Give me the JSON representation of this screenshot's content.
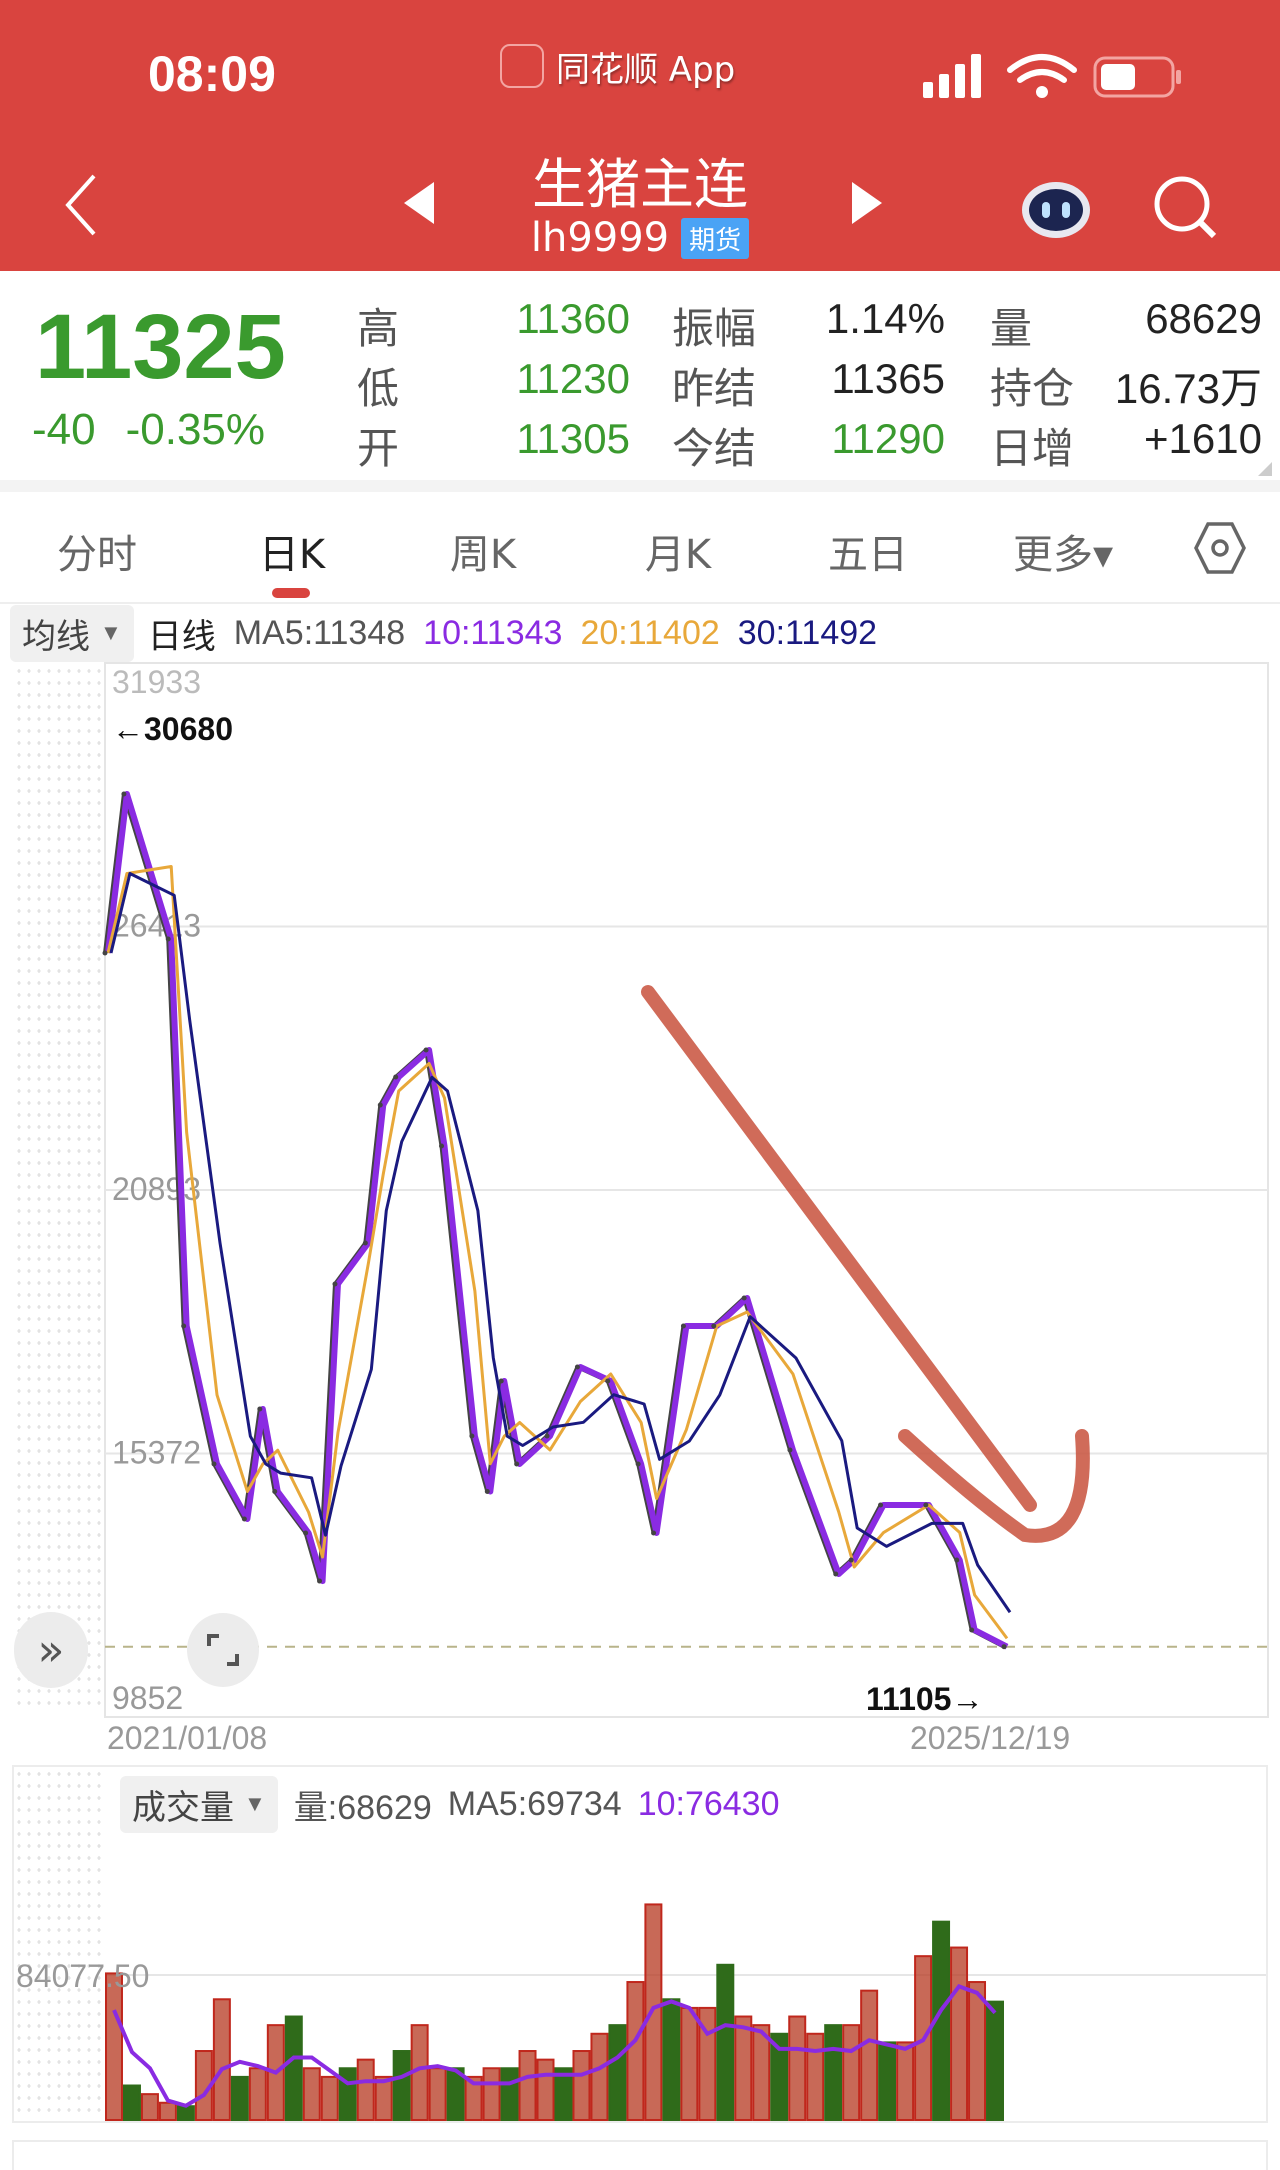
{
  "status": {
    "time": "08:09",
    "app_name": "同花顺 App"
  },
  "header": {
    "title": "生猪主连",
    "code": "lh9999",
    "badge": "期货",
    "icons": [
      "back-chevron-icon",
      "prev-triangle-icon",
      "next-triangle-icon",
      "robot-assistant-icon",
      "search-icon"
    ]
  },
  "quote": {
    "price": "11325",
    "change": "-40",
    "change_pct": "-0.35%",
    "rows": [
      [
        {
          "l": "高",
          "v": "11360",
          "c": "g"
        },
        {
          "l": "振幅",
          "v": "1.14%",
          "c": "k"
        },
        {
          "l": "量",
          "v": "68629",
          "c": "k"
        }
      ],
      [
        {
          "l": "低",
          "v": "11230",
          "c": "g"
        },
        {
          "l": "昨结",
          "v": "11365",
          "c": "k"
        },
        {
          "l": "持仓",
          "v": "16.73万",
          "c": "k"
        }
      ],
      [
        {
          "l": "开",
          "v": "11305",
          "c": "g"
        },
        {
          "l": "今结",
          "v": "11290",
          "c": "g"
        },
        {
          "l": "日增",
          "v": "+1610",
          "c": "k"
        }
      ]
    ]
  },
  "colors": {
    "header_red": "#d9443f",
    "down_green": "#3a9a2e",
    "ma5": "#555555",
    "ma10": "#8a2be2",
    "ma20": "#e8a83a",
    "ma30": "#1a1a80",
    "vol_up": "#c0271c",
    "vol_down": "#2f6b1a"
  },
  "tabs": [
    {
      "label": "分时"
    },
    {
      "label": "日K",
      "active": true
    },
    {
      "label": "周K"
    },
    {
      "label": "月K"
    },
    {
      "label": "五日"
    },
    {
      "label": "更多▾"
    }
  ],
  "legend": {
    "selector": "均线",
    "period": "日线",
    "ma5": "MA5:11348",
    "ma10": "10:11343",
    "ma20": "20:11402",
    "ma30": "30:11492"
  },
  "chart_data": [
    {
      "type": "line",
      "y_ticks": [
        "31933",
        "26413",
        "20893",
        "15372",
        "9852"
      ],
      "ylim": [
        9852,
        31933
      ],
      "x_labels": [
        "2021/01/08",
        "2025/12/19"
      ],
      "max_marker": "←30680",
      "min_marker": "11105→",
      "current_price_line": 11325,
      "series": [
        {
          "name": "日线",
          "points": [
            [
              "2021-01-08",
              25858
            ],
            [
              "2021-02",
              29188
            ],
            [
              "2021-05",
              26151
            ],
            [
              "2021-06",
              18044
            ],
            [
              "2021-08",
              15153
            ],
            [
              "2021-10",
              14000
            ],
            [
              "2021-11",
              16305
            ],
            [
              "2021-12",
              14576
            ],
            [
              "2022-02",
              13707
            ],
            [
              "2022-03",
              12700
            ],
            [
              "2022-04",
              18923
            ],
            [
              "2022-06",
              19782
            ],
            [
              "2022-07",
              22673
            ],
            [
              "2022-08",
              23260
            ],
            [
              "2022-10",
              23826
            ],
            [
              "2022-11",
              21814
            ],
            [
              "2023-01",
              15739
            ],
            [
              "2023-02",
              14576
            ],
            [
              "2023-03",
              16891
            ],
            [
              "2023-04",
              15153
            ],
            [
              "2023-06",
              15739
            ],
            [
              "2023-08",
              17184
            ],
            [
              "2023-10",
              16891
            ],
            [
              "2023-12",
              15153
            ],
            [
              "2024-01",
              13707
            ],
            [
              "2024-03",
              18044
            ],
            [
              "2024-05",
              18044
            ],
            [
              "2024-07",
              18630
            ],
            [
              "2024-10",
              15445
            ],
            [
              "2025-01",
              12848
            ],
            [
              "2025-02",
              13140
            ],
            [
              "2025-04",
              14293
            ],
            [
              "2025-07",
              14293
            ],
            [
              "2025-09",
              13140
            ],
            [
              "2025-10",
              11675
            ],
            [
              "2025-12-19",
              11325
            ]
          ]
        }
      ]
    },
    {
      "type": "bar",
      "title": "成交量",
      "legend": {
        "vol": "量:68629",
        "ma5": "MA5:69734",
        "ma10": "10:76430"
      },
      "y_tick": "84077.50",
      "ylim": [
        0,
        168155
      ],
      "values": [
        85000,
        20000,
        15000,
        10000,
        8000,
        40000,
        70000,
        25000,
        30000,
        55000,
        60000,
        30000,
        25000,
        30000,
        35000,
        25000,
        40000,
        55000,
        30000,
        30000,
        25000,
        30000,
        30000,
        40000,
        35000,
        30000,
        40000,
        50000,
        55000,
        80000,
        125000,
        70000,
        65000,
        65000,
        90000,
        60000,
        55000,
        50000,
        60000,
        50000,
        55000,
        55000,
        75000,
        45000,
        45000,
        95000,
        115000,
        100000,
        80000,
        68629
      ]
    }
  ]
}
